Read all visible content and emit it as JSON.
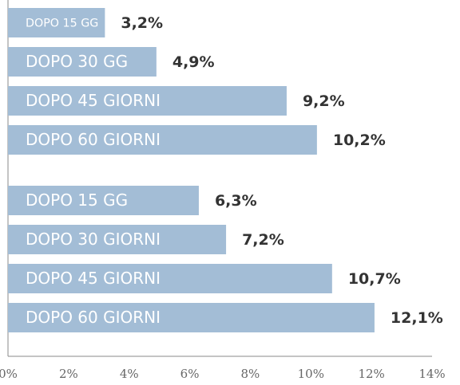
{
  "chart_data": {
    "type": "bar",
    "orientation": "horizontal",
    "categories": [
      "DOPO 15 GG",
      "DOPO 30 GG",
      "DOPO 45 GIORNI",
      "DOPO 60 GIORNI",
      "DOPO 15 GG",
      "DOPO 30 GIORNI",
      "DOPO 45 GIORNI",
      "DOPO 60 GIORNI"
    ],
    "values": [
      3.2,
      4.9,
      9.2,
      10.2,
      6.3,
      7.2,
      10.7,
      12.1
    ],
    "value_labels": [
      "3,2%",
      "4,9%",
      "9,2%",
      "10,2%",
      "6,3%",
      "7,2%",
      "10,7%",
      "12,1%"
    ],
    "color": "#a3bdd6",
    "xlim": [
      0,
      14
    ],
    "xticks": [
      {
        "value": 0,
        "label": "0%"
      },
      {
        "value": 2,
        "label": "2%"
      },
      {
        "value": 4,
        "label": "4%"
      },
      {
        "value": 6,
        "label": "6%"
      },
      {
        "value": 8,
        "label": "8%"
      },
      {
        "value": 10,
        "label": "10%"
      },
      {
        "value": 12,
        "label": "12%"
      },
      {
        "value": 14,
        "label": "14%"
      }
    ]
  }
}
